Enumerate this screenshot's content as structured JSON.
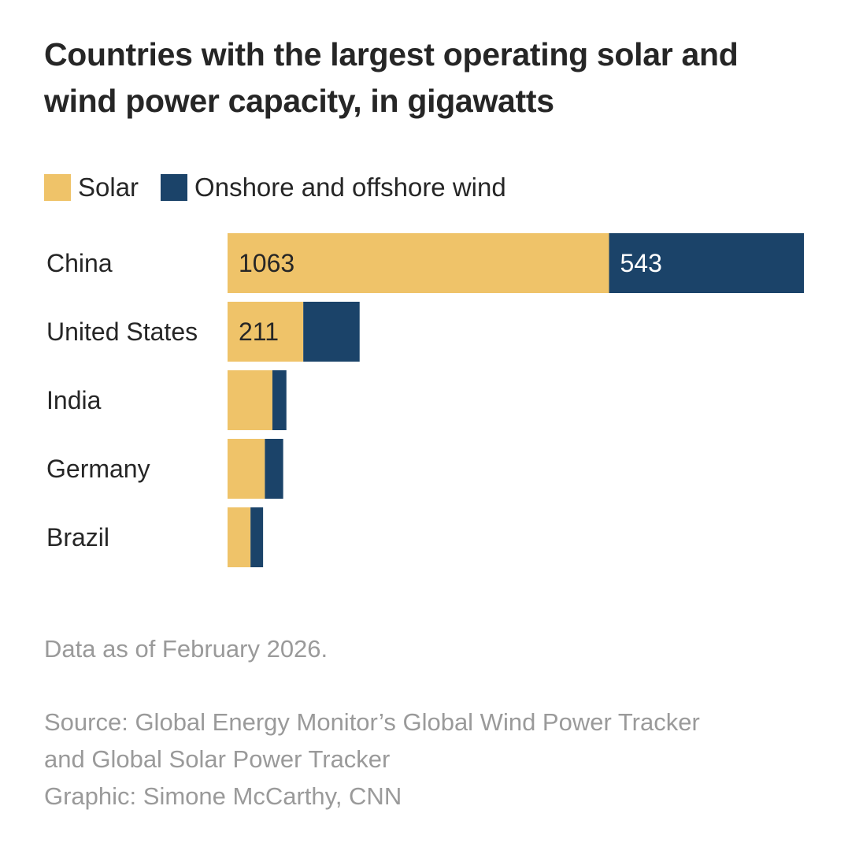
{
  "title_line1": "Countries with the largest operating solar and",
  "title_line2": "wind power capacity, in gigawatts",
  "colors": {
    "solar": "#EFC369",
    "wind": "#1B4369",
    "text": "#262626",
    "muted": "#9A9A9A"
  },
  "chart_data": {
    "type": "bar",
    "orientation": "horizontal",
    "stacked": true,
    "title": "Countries with the largest operating solar and wind power capacity, in gigawatts",
    "legend": [
      "Solar",
      "Onshore and offshore wind"
    ],
    "categories": [
      "China",
      "United States",
      "India",
      "Germany",
      "Brazil"
    ],
    "series": [
      {
        "name": "Solar",
        "key": "solar",
        "values": [
          1063,
          211,
          125,
          104,
          64
        ],
        "labels": [
          "1063",
          "211",
          "",
          "",
          ""
        ]
      },
      {
        "name": "Onshore and offshore wind",
        "key": "wind",
        "values": [
          543,
          157,
          39,
          51,
          35
        ],
        "labels": [
          "543",
          "",
          "",
          "",
          ""
        ]
      }
    ],
    "xlim": [
      0,
      1606
    ]
  },
  "note": "Data as of February 2026.",
  "source_line1": "Source: Global Energy Monitor’s Global Wind Power Tracker",
  "source_line2": "and Global Solar Power Tracker",
  "credit": "Graphic: Simone McCarthy, CNN"
}
